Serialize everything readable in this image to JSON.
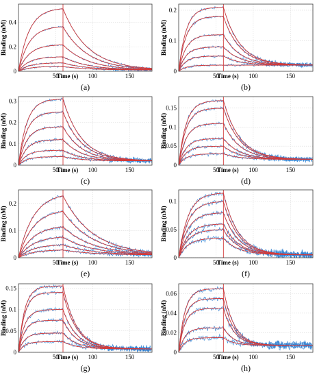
{
  "colors": {
    "experimental": "#2f7fd0",
    "fit": "#d23a3a",
    "association_end_marker": "#d23a3a",
    "grid": "#d9d9d9",
    "frame": "#3a3a3a"
  },
  "chart_data": [
    {
      "panel": "(a)",
      "type": "line",
      "xlabel": "Time (s)",
      "ylabel": "Binding (nM)",
      "xlim": [
        0,
        180
      ],
      "ylim": [
        0,
        0.55
      ],
      "xticks": [
        50,
        100,
        150
      ],
      "yticks": [
        0,
        0.2,
        0.4
      ],
      "ytick_labels": [
        "0",
        "0.2",
        "0.4"
      ],
      "grid": true,
      "association_end": 60,
      "plateaus": [
        0.52,
        0.37,
        0.22,
        0.12,
        0.07,
        0.04
      ],
      "k_on": 0.07,
      "k_off": 0.03,
      "baseline": 0.01,
      "noise": 0.006
    },
    {
      "panel": "(b)",
      "type": "line",
      "xlabel": "Time (s)",
      "ylabel": "Binding (nM)",
      "xlim": [
        0,
        180
      ],
      "ylim": [
        0,
        0.22
      ],
      "xticks": [
        50,
        100,
        150
      ],
      "yticks": [
        0,
        0.1,
        0.2
      ],
      "ytick_labels": [
        "0",
        "0.1",
        "0.2"
      ],
      "grid": true,
      "association_end": 60,
      "plateaus": [
        0.21,
        0.18,
        0.12,
        0.08,
        0.05,
        0.02
      ],
      "k_on": 0.1,
      "k_off": 0.045,
      "baseline": 0.02,
      "noise": 0.004
    },
    {
      "panel": "(c)",
      "type": "line",
      "xlabel": "Time (s)",
      "ylabel": "Binding (nM)",
      "xlim": [
        0,
        180
      ],
      "ylim": [
        0,
        0.32
      ],
      "xticks": [
        50,
        100,
        150
      ],
      "yticks": [
        0,
        0.1,
        0.2,
        0.3
      ],
      "ytick_labels": [
        "0",
        "0.1",
        "0.2",
        "0.3"
      ],
      "grid": true,
      "association_end": 60,
      "plateaus": [
        0.31,
        0.25,
        0.18,
        0.12,
        0.07,
        0.04
      ],
      "k_on": 0.09,
      "k_off": 0.04,
      "baseline": 0.02,
      "noise": 0.006
    },
    {
      "panel": "(d)",
      "type": "line",
      "xlabel": "Time (s)",
      "ylabel": "Binding (nM)",
      "xlim": [
        0,
        180
      ],
      "ylim": [
        0,
        0.18
      ],
      "xticks": [
        50,
        100,
        150
      ],
      "yticks": [
        0,
        0.05,
        0.1,
        0.15
      ],
      "ytick_labels": [
        "0",
        "0.05",
        "0.1",
        "0.15"
      ],
      "grid": true,
      "association_end": 60,
      "plateaus": [
        0.17,
        0.15,
        0.11,
        0.07,
        0.05,
        0.03
      ],
      "k_on": 0.1,
      "k_off": 0.045,
      "baseline": 0.015,
      "noise": 0.004
    },
    {
      "panel": "(e)",
      "type": "line",
      "xlabel": "Time (s)",
      "ylabel": "Binding (nM)",
      "xlim": [
        0,
        180
      ],
      "ylim": [
        0,
        0.25
      ],
      "xticks": [
        50,
        100,
        150
      ],
      "yticks": [
        0,
        0.1,
        0.2
      ],
      "ytick_labels": [
        "0",
        "0.1",
        "0.2"
      ],
      "grid": true,
      "association_end": 60,
      "plateaus": [
        0.24,
        0.18,
        0.12,
        0.08,
        0.05,
        0.03
      ],
      "k_on": 0.05,
      "k_off": 0.025,
      "baseline": 0.01,
      "noise": 0.005
    },
    {
      "panel": "(f)",
      "type": "line",
      "xlabel": "Time (s)",
      "ylabel": "Binding (nM)",
      "xlim": [
        0,
        180
      ],
      "ylim": [
        0,
        0.12
      ],
      "xticks": [
        50,
        100,
        150
      ],
      "yticks": [
        0,
        0.05,
        0.1
      ],
      "ytick_labels": [
        "0",
        "0.05",
        "0.1"
      ],
      "grid": true,
      "association_end": 60,
      "plateaus": [
        0.115,
        0.1,
        0.08,
        0.06,
        0.05,
        0.035
      ],
      "k_on": 0.08,
      "k_off": 0.05,
      "baseline": 0.005,
      "noise": 0.004
    },
    {
      "panel": "(g)",
      "type": "line",
      "xlabel": "Time (s)",
      "ylabel": "Binding (nM)",
      "xlim": [
        0,
        180
      ],
      "ylim": [
        0,
        0.16
      ],
      "xticks": [
        50,
        100,
        150
      ],
      "yticks": [
        0,
        0.05,
        0.1,
        0.15
      ],
      "ytick_labels": [
        "0",
        "0.05",
        "0.1",
        "0.15"
      ],
      "grid": true,
      "association_end": 60,
      "plateaus": [
        0.155,
        0.14,
        0.1,
        0.075,
        0.045,
        0.025
      ],
      "k_on": 0.12,
      "k_off": 0.055,
      "baseline": 0.008,
      "noise": 0.004
    },
    {
      "panel": "(h)",
      "type": "line",
      "xlabel": "Time (s)",
      "ylabel": "Binding (nM)",
      "xlim": [
        0,
        180
      ],
      "ylim": [
        0,
        0.07
      ],
      "xticks": [
        50,
        100,
        150
      ],
      "yticks": [
        0,
        0.02,
        0.04,
        0.06
      ],
      "ytick_labels": [
        "0",
        "0.02",
        "0.04",
        "0.06"
      ],
      "grid": true,
      "association_end": 60,
      "plateaus": [
        0.065,
        0.055,
        0.045,
        0.025,
        0.015
      ],
      "k_on": 0.12,
      "k_off": 0.07,
      "baseline": 0.007,
      "noise": 0.0025
    }
  ]
}
